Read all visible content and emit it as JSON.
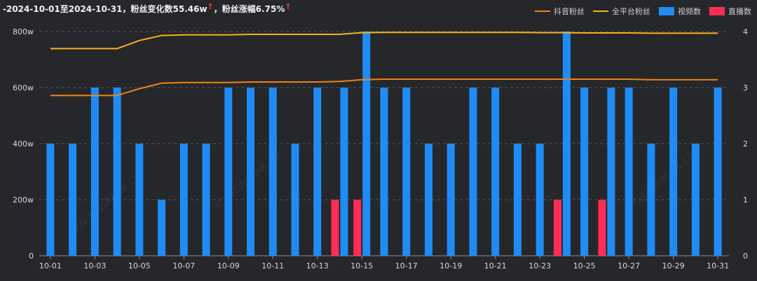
{
  "summary": {
    "text": "-2024-10-01至2024-10-31，粉丝变化数55.46w",
    "sep": "，粉丝涨幅6.75%",
    "arrow": "↑"
  },
  "colors": {
    "douyin_fans": "#f0830e",
    "all_platform_fans": "#f5b21c",
    "video_count": "#1f8cf5",
    "live_count": "#ff2d55",
    "background": "#26272b",
    "grid": "#55565c"
  },
  "watermark": "XD.NEWRANK.CN",
  "chart_data": {
    "type": "bar",
    "categories": [
      "10-01",
      "10-02",
      "10-03",
      "10-04",
      "10-05",
      "10-06",
      "10-07",
      "10-08",
      "10-09",
      "10-10",
      "10-11",
      "10-12",
      "10-13",
      "10-14",
      "10-15",
      "10-16",
      "10-17",
      "10-18",
      "10-19",
      "10-20",
      "10-21",
      "10-22",
      "10-23",
      "10-24",
      "10-25",
      "10-26",
      "10-27",
      "10-28",
      "10-29",
      "10-30",
      "10-31"
    ],
    "x_tick_labels": [
      "10-01",
      "10-03",
      "10-05",
      "10-07",
      "10-09",
      "10-11",
      "10-13",
      "10-15",
      "10-17",
      "10-19",
      "10-21",
      "10-23",
      "10-25",
      "10-27",
      "10-29",
      "10-31"
    ],
    "y_left": {
      "ticks": [
        "0",
        "200w",
        "400w",
        "600w",
        "800w"
      ],
      "range": [
        0,
        800
      ],
      "unit": "w"
    },
    "y_right": {
      "ticks": [
        "0",
        "1",
        "2",
        "3",
        "4"
      ],
      "range": [
        0,
        4
      ]
    },
    "grid": true,
    "legend_position": "top-right",
    "series": [
      {
        "name": "抖音粉丝",
        "kind": "line",
        "axis": "left",
        "values": [
          572,
          572,
          572,
          572,
          596,
          616,
          618,
          618,
          618,
          620,
          620,
          620,
          620,
          622,
          628,
          630,
          630,
          630,
          630,
          630,
          630,
          630,
          630,
          630,
          630,
          630,
          630,
          628,
          628,
          628,
          628
        ]
      },
      {
        "name": "全平台粉丝",
        "kind": "line",
        "axis": "left",
        "values": [
          739,
          739,
          739,
          739,
          768,
          786,
          788,
          788,
          788,
          790,
          790,
          790,
          790,
          790,
          796,
          797,
          797,
          797,
          797,
          797,
          797,
          797,
          796,
          796,
          795,
          795,
          795,
          794,
          794,
          794,
          794
        ]
      },
      {
        "name": "视频数",
        "kind": "bar",
        "axis": "right",
        "values": [
          2,
          2,
          3,
          3,
          2,
          1,
          2,
          2,
          3,
          3,
          3,
          2,
          3,
          3,
          4,
          3,
          3,
          2,
          2,
          3,
          3,
          2,
          2,
          4,
          3,
          3,
          3,
          2,
          3,
          2,
          3
        ]
      },
      {
        "name": "直播数",
        "kind": "bar",
        "axis": "right",
        "values": [
          0,
          0,
          0,
          0,
          0,
          0,
          0,
          0,
          0,
          0,
          0,
          0,
          0,
          1,
          1,
          0,
          0,
          0,
          0,
          0,
          0,
          0,
          0,
          1,
          0,
          1,
          0,
          0,
          0,
          0,
          0
        ]
      }
    ]
  }
}
